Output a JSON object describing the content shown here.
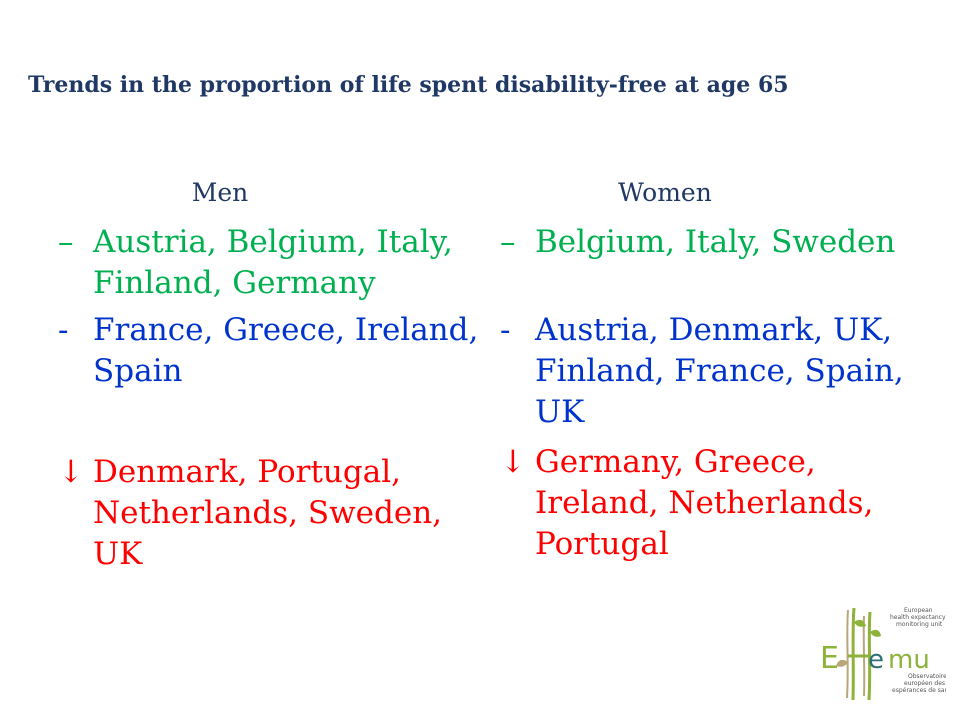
{
  "title": "Trends in the proportion of life spent disability-free at age 65",
  "columns": {
    "men": {
      "heading": "Men",
      "items": [
        {
          "marker": "–",
          "text": "Austria, Belgium, Italy, Finland, Germany",
          "color": "#00b050"
        },
        {
          "marker": "-",
          "text": "France, Greece, Ireland, Spain",
          "color": "#0033cc"
        },
        {
          "marker": "↓",
          "text": "Denmark, Portugal, Netherlands, Sweden, UK",
          "color": "#ff0000"
        }
      ]
    },
    "women": {
      "heading": "Women",
      "items": [
        {
          "marker": "–",
          "text": "Belgium, Italy, Sweden",
          "color": "#00b050"
        },
        {
          "marker": "-",
          "text": "Austria, Denmark, UK, Finland, France, Spain, UK",
          "color": "#0033cc"
        },
        {
          "marker": "↓",
          "text": "Germany, Greece, Ireland, Netherlands, Portugal",
          "color": "#ff0000"
        }
      ]
    }
  },
  "logo": {
    "tagline": "European health expectancy monitoring unit",
    "wordmark": "EHEMU",
    "subtext": "Observatoire européen des espérances de santé",
    "colors": {
      "green": "#8db33a",
      "tan": "#b8a77a",
      "teal": "#2f6f73"
    }
  }
}
